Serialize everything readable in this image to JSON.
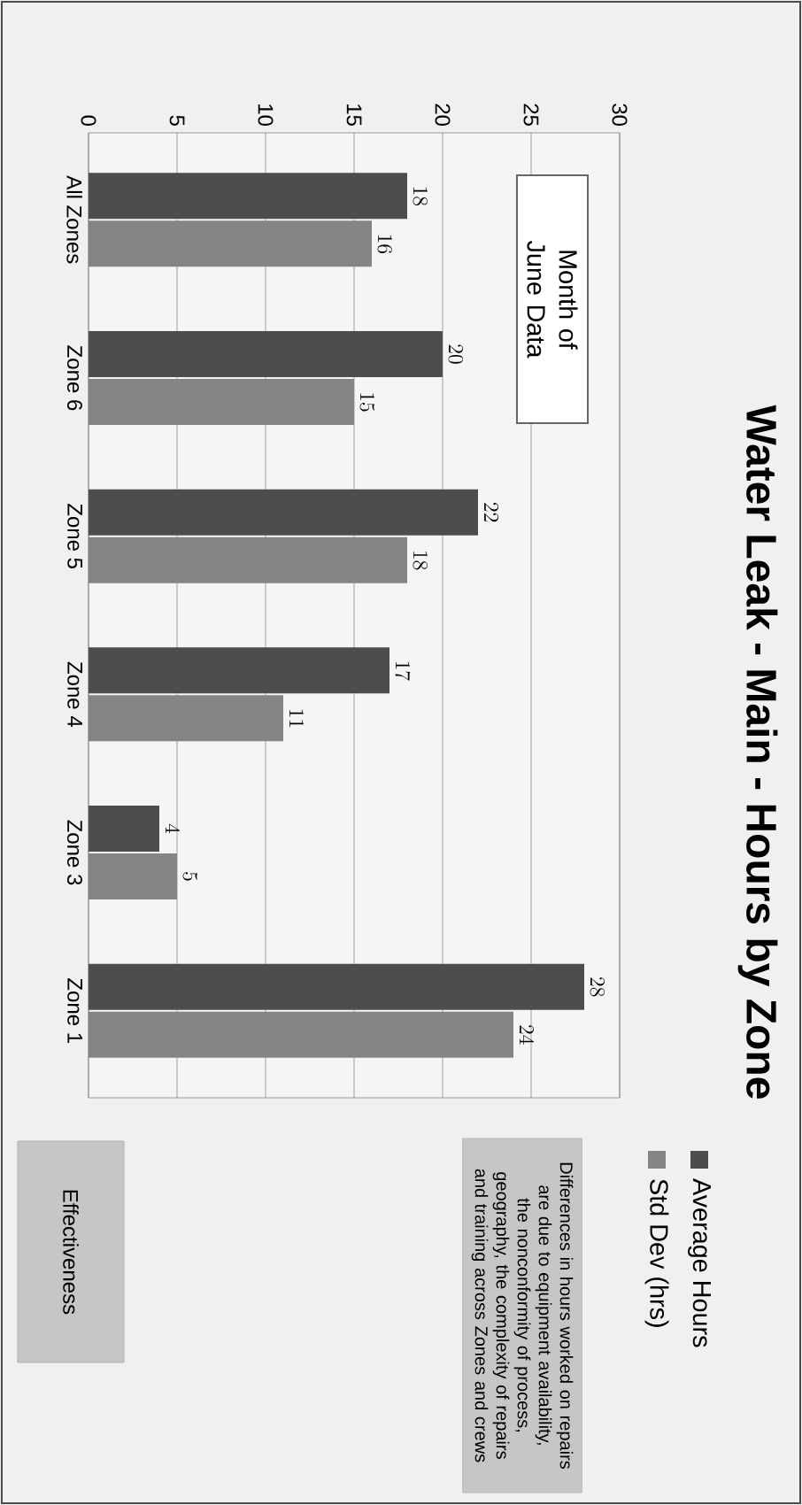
{
  "chart_data": {
    "type": "bar",
    "orientation": "horizontal",
    "title": "Water Leak - Main - Hours by Zone",
    "categories": [
      "All Zones",
      "Zone 6",
      "Zone 5",
      "Zone 4",
      "Zone 3",
      "Zone 1"
    ],
    "series": [
      {
        "name": "Average Hours",
        "color": "#4d4d4d",
        "values": [
          18,
          20,
          22,
          17,
          4,
          28
        ]
      },
      {
        "name": "Std Dev (hrs)",
        "color": "#858585",
        "values": [
          16,
          15,
          18,
          11,
          5,
          24
        ]
      }
    ],
    "xlim": [
      0,
      30
    ],
    "xticks": [
      0,
      5,
      10,
      15,
      20,
      25,
      30
    ],
    "grid": "x",
    "legend": "right",
    "data_labels": true,
    "annotations": [
      "Differences in hours worked on repairs are due to equipment availability, the nonconformity of process, geography, the complexity of repairs and training across Zones and crews",
      "Month of June Data",
      "Effectiveness"
    ]
  }
}
